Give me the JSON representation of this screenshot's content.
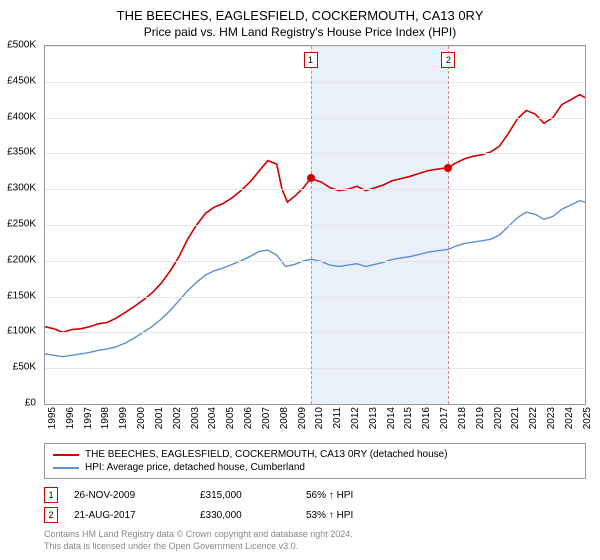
{
  "title_main": "THE BEECHES, EAGLESFIELD, COCKERMOUTH, CA13 0RY",
  "title_sub": "Price paid vs. HM Land Registry's House Price Index (HPI)",
  "chart": {
    "type": "line",
    "background_color": "#ffffff",
    "grid_color": "#e6e6e6",
    "border_color": "#999999",
    "shaded_band_color": "#eaf0f9",
    "shaded_band_start": 2009.9,
    "shaded_band_end": 2017.64,
    "x_start": 1995,
    "x_end": 2025.3,
    "x_ticks": [
      "1995",
      "1996",
      "1997",
      "1998",
      "1999",
      "2000",
      "2001",
      "2002",
      "2003",
      "2004",
      "2005",
      "2006",
      "2007",
      "2008",
      "2009",
      "2010",
      "2011",
      "2012",
      "2013",
      "2014",
      "2015",
      "2016",
      "2017",
      "2018",
      "2019",
      "2020",
      "2021",
      "2022",
      "2023",
      "2024",
      "2025"
    ],
    "y_min": 0,
    "y_max": 500,
    "y_tick_step": 50,
    "y_tick_labels": [
      "£0",
      "£50K",
      "£100K",
      "£150K",
      "£200K",
      "£250K",
      "£300K",
      "£350K",
      "£400K",
      "£450K",
      "£500K"
    ],
    "series": [
      {
        "name": "property",
        "color": "#d00000",
        "width": 1.6,
        "data": [
          [
            1995,
            108
          ],
          [
            1995.5,
            105
          ],
          [
            1996,
            100
          ],
          [
            1996.5,
            104
          ],
          [
            1997,
            105
          ],
          [
            1997.5,
            108
          ],
          [
            1998,
            112
          ],
          [
            1998.5,
            114
          ],
          [
            1999,
            120
          ],
          [
            1999.5,
            128
          ],
          [
            2000,
            136
          ],
          [
            2000.5,
            145
          ],
          [
            2001,
            155
          ],
          [
            2001.5,
            168
          ],
          [
            2002,
            185
          ],
          [
            2002.5,
            205
          ],
          [
            2003,
            230
          ],
          [
            2003.5,
            250
          ],
          [
            2004,
            266
          ],
          [
            2004.5,
            275
          ],
          [
            2005,
            280
          ],
          [
            2005.5,
            288
          ],
          [
            2006,
            298
          ],
          [
            2006.5,
            310
          ],
          [
            2007,
            325
          ],
          [
            2007.5,
            340
          ],
          [
            2008,
            335
          ],
          [
            2008.3,
            300
          ],
          [
            2008.6,
            282
          ],
          [
            2009,
            290
          ],
          [
            2009.5,
            302
          ],
          [
            2009.9,
            315
          ],
          [
            2010,
            314
          ],
          [
            2010.5,
            310
          ],
          [
            2011,
            302
          ],
          [
            2011.5,
            298
          ],
          [
            2012,
            300
          ],
          [
            2012.5,
            304
          ],
          [
            2013,
            298
          ],
          [
            2013.5,
            302
          ],
          [
            2014,
            306
          ],
          [
            2014.5,
            312
          ],
          [
            2015,
            315
          ],
          [
            2015.5,
            318
          ],
          [
            2016,
            322
          ],
          [
            2016.5,
            326
          ],
          [
            2017,
            328
          ],
          [
            2017.64,
            330
          ],
          [
            2018,
            336
          ],
          [
            2018.5,
            342
          ],
          [
            2019,
            346
          ],
          [
            2019.5,
            348
          ],
          [
            2020,
            352
          ],
          [
            2020.5,
            360
          ],
          [
            2021,
            378
          ],
          [
            2021.5,
            398
          ],
          [
            2022,
            410
          ],
          [
            2022.5,
            405
          ],
          [
            2023,
            392
          ],
          [
            2023.5,
            400
          ],
          [
            2024,
            418
          ],
          [
            2024.5,
            425
          ],
          [
            2025,
            432
          ],
          [
            2025.3,
            428
          ]
        ]
      },
      {
        "name": "hpi",
        "color": "#5b8fd6",
        "width": 1.4,
        "data": [
          [
            1995,
            70
          ],
          [
            1995.5,
            68
          ],
          [
            1996,
            66
          ],
          [
            1996.5,
            68
          ],
          [
            1997,
            70
          ],
          [
            1997.5,
            72
          ],
          [
            1998,
            75
          ],
          [
            1998.5,
            77
          ],
          [
            1999,
            80
          ],
          [
            1999.5,
            85
          ],
          [
            2000,
            92
          ],
          [
            2000.5,
            100
          ],
          [
            2001,
            108
          ],
          [
            2001.5,
            118
          ],
          [
            2002,
            130
          ],
          [
            2002.5,
            144
          ],
          [
            2003,
            158
          ],
          [
            2003.5,
            170
          ],
          [
            2004,
            180
          ],
          [
            2004.5,
            186
          ],
          [
            2005,
            190
          ],
          [
            2005.5,
            195
          ],
          [
            2006,
            200
          ],
          [
            2006.5,
            206
          ],
          [
            2007,
            213
          ],
          [
            2007.5,
            215
          ],
          [
            2008,
            208
          ],
          [
            2008.5,
            192
          ],
          [
            2009,
            195
          ],
          [
            2009.5,
            200
          ],
          [
            2009.9,
            202
          ],
          [
            2010,
            202
          ],
          [
            2010.5,
            199
          ],
          [
            2011,
            194
          ],
          [
            2011.5,
            192
          ],
          [
            2012,
            194
          ],
          [
            2012.5,
            196
          ],
          [
            2013,
            192
          ],
          [
            2013.5,
            195
          ],
          [
            2014,
            198
          ],
          [
            2014.5,
            202
          ],
          [
            2015,
            204
          ],
          [
            2015.5,
            206
          ],
          [
            2016,
            209
          ],
          [
            2016.5,
            212
          ],
          [
            2017,
            214
          ],
          [
            2017.64,
            216
          ],
          [
            2018,
            220
          ],
          [
            2018.5,
            224
          ],
          [
            2019,
            226
          ],
          [
            2019.5,
            228
          ],
          [
            2020,
            230
          ],
          [
            2020.5,
            236
          ],
          [
            2021,
            248
          ],
          [
            2021.5,
            260
          ],
          [
            2022,
            268
          ],
          [
            2022.5,
            265
          ],
          [
            2023,
            258
          ],
          [
            2023.5,
            262
          ],
          [
            2024,
            272
          ],
          [
            2024.5,
            278
          ],
          [
            2025,
            284
          ],
          [
            2025.3,
            282
          ]
        ]
      }
    ],
    "markers": [
      {
        "flag": "1",
        "x": 2009.9,
        "y": 315
      },
      {
        "flag": "2",
        "x": 2017.64,
        "y": 330
      }
    ],
    "marker_dot_color": "#d00000",
    "marker_flag_border": "#d00000",
    "dashed_line_color": "#d08888"
  },
  "legend": {
    "items": [
      {
        "color": "#d00000",
        "label": "THE BEECHES, EAGLESFIELD, COCKERMOUTH, CA13 0RY (detached house)"
      },
      {
        "color": "#5b8fd6",
        "label": "HPI: Average price, detached house, Cumberland"
      }
    ]
  },
  "sales": [
    {
      "flag": "1",
      "date": "26-NOV-2009",
      "price": "£315,000",
      "hpi": "56% ↑ HPI"
    },
    {
      "flag": "2",
      "date": "21-AUG-2017",
      "price": "£330,000",
      "hpi": "53% ↑ HPI"
    }
  ],
  "footer_line1": "Contains HM Land Registry data © Crown copyright and database right 2024.",
  "footer_line2": "This data is licensed under the Open Government Licence v3.0."
}
